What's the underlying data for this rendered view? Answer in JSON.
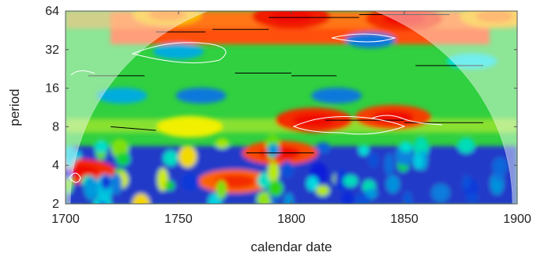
{
  "chart_data": {
    "type": "heatmap",
    "subtype": "wavelet-power-spectrum",
    "title": "",
    "xlabel": "calendar date",
    "ylabel": "period",
    "xlim": [
      1700,
      1900
    ],
    "ylim": [
      2,
      64
    ],
    "y_scale": "log2",
    "x_ticks": [
      1700,
      1750,
      1800,
      1850,
      1900
    ],
    "y_ticks": [
      2,
      4,
      8,
      16,
      32,
      64
    ],
    "colormap": [
      "#1010d8",
      "#00e0e0",
      "#10d010",
      "#f0f000",
      "#ff8000",
      "#f01000"
    ],
    "cone_of_influence": true,
    "grid": false,
    "legend": "none",
    "power_blobs": [
      {
        "x": 1705,
        "period": 3.6,
        "power": 0.95
      },
      {
        "x": 1745,
        "period": 60,
        "power": 0.7
      },
      {
        "x": 1800,
        "period": 58,
        "power": 0.98
      },
      {
        "x": 1850,
        "period": 56,
        "power": 0.95
      },
      {
        "x": 1890,
        "period": 58,
        "power": 0.7
      },
      {
        "x": 1810,
        "period": 9,
        "power": 0.95
      },
      {
        "x": 1845,
        "period": 9.5,
        "power": 0.92
      },
      {
        "x": 1795,
        "period": 5,
        "power": 0.9
      },
      {
        "x": 1755,
        "period": 8,
        "power": 0.6
      },
      {
        "x": 1775,
        "period": 3,
        "power": 0.85
      },
      {
        "x": 1835,
        "period": 38,
        "power": 0.1
      },
      {
        "x": 1760,
        "period": 14,
        "power": 0.1
      },
      {
        "x": 1725,
        "period": 14,
        "power": 0.15
      },
      {
        "x": 1820,
        "period": 14,
        "power": 0.1
      },
      {
        "x": 1750,
        "period": 31,
        "power": 0.15
      },
      {
        "x": 1880,
        "period": 26,
        "power": 0.2
      }
    ]
  }
}
